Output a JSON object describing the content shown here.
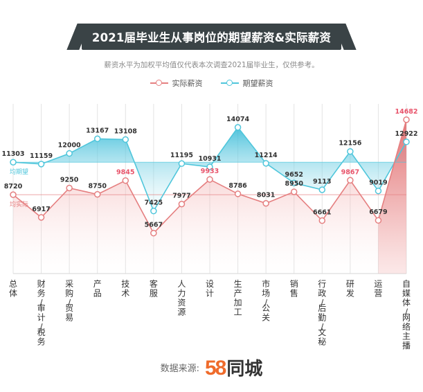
{
  "title": "2021届毕业生从事岗位的期望薪资&实际薪资",
  "subtitle": "薪资水平为加权平均值仅代表本次调查2021届毕业生，仅供参考。",
  "source": {
    "label": "数据来源:",
    "logo_number": "58",
    "logo_text": "同城"
  },
  "colors": {
    "actual": "#e57f80",
    "expected": "#4fc6db",
    "highlight": "#e8536a",
    "title_bg": "#3a4346"
  },
  "chart_data": {
    "type": "line",
    "categories": [
      "总体",
      "财务/审计/税务",
      "采购/贸易",
      "产品",
      "技术",
      "客服",
      "人力资源",
      "设计",
      "生产加工",
      "市场/公关",
      "销售",
      "行政/后勤/文秘",
      "研发",
      "运营",
      "自媒体/网络主播"
    ],
    "category_lines": [
      [
        "总体"
      ],
      [
        "财务/",
        "审计/",
        "税务"
      ],
      [
        "采购/",
        "贸易"
      ],
      [
        "产品"
      ],
      [
        "技术"
      ],
      [
        "客服"
      ],
      [
        "人力",
        "资源"
      ],
      [
        "设计"
      ],
      [
        "生产",
        "加工"
      ],
      [
        "市场/",
        "公关"
      ],
      [
        "销售"
      ],
      [
        "行政/",
        "后勤/",
        "文秘"
      ],
      [
        "研发"
      ],
      [
        "运营"
      ],
      [
        "自媒",
        "体/",
        "网络",
        "主播"
      ]
    ],
    "series": [
      {
        "name": "实际薪资",
        "values": [
          8720,
          6917,
          9250,
          8750,
          9845,
          5667,
          7977,
          9933,
          8786,
          8031,
          8950,
          6661,
          9867,
          6679,
          14682
        ],
        "highlight": [
          false,
          false,
          false,
          false,
          true,
          false,
          false,
          true,
          false,
          false,
          false,
          false,
          true,
          false,
          true
        ]
      },
      {
        "name": "期望薪资",
        "values": [
          11303,
          11159,
          12000,
          13167,
          13108,
          7425,
          11195,
          10931,
          14074,
          11214,
          9652,
          9113,
          12156,
          9019,
          12922
        ],
        "highlight": [
          false,
          false,
          false,
          false,
          false,
          false,
          false,
          false,
          false,
          false,
          false,
          false,
          false,
          false,
          false
        ]
      }
    ],
    "reference_lines": [
      {
        "label": "均期望",
        "series": "期望薪资",
        "value": 11303
      },
      {
        "label": "均实际",
        "series": "实际薪资",
        "value": 8720
      }
    ],
    "ylim": [
      3000,
      15500
    ],
    "legend_position": "top-center",
    "grid": false,
    "xlabel": "",
    "ylabel": ""
  }
}
